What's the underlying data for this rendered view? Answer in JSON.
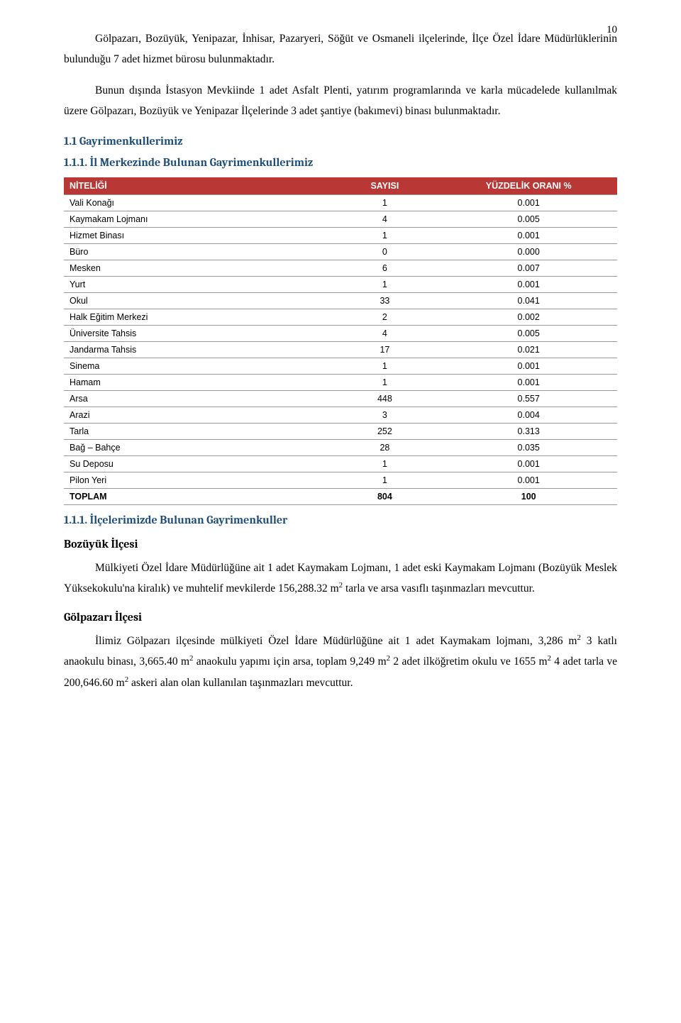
{
  "page_number": "10",
  "paragraphs": {
    "p1": "Gölpazarı, Bozüyük, Yenipazar, İnhisar, Pazaryeri, Söğüt ve Osmaneli ilçelerinde, İlçe Özel İdare Müdürlüklerinin bulunduğu 7 adet hizmet bürosu bulunmaktadır.",
    "p2": "Bunun dışında İstasyon Mevkiinde 1 adet Asfalt Plenti, yatırım programlarında ve karla mücadelede kullanılmak üzere Gölpazarı, Bozüyük ve Yenipazar İlçelerinde 3 adet şantiye (bakımevi) binası bulunmaktadır."
  },
  "headings": {
    "h11": "1.1 Gayrimenkullerimiz",
    "h111": "1.1.1. İl Merkezinde Bulunan Gayrimenkullerimiz",
    "h112": "1.1.1. İlçelerimizde Bulunan Gayrimenkuller",
    "bozuyuk": "Bozüyük İlçesi",
    "golpazari": "Gölpazarı İlçesi"
  },
  "table": {
    "type": "table",
    "header_bg": "#b93835",
    "header_color": "#ffffff",
    "border_color": "#999999",
    "font_family": "Verdana",
    "font_size": 12.5,
    "columns": [
      {
        "label": "NİTELİĞİ",
        "align": "left",
        "width": "48%"
      },
      {
        "label": "SAYISI",
        "align": "center",
        "width": "20%"
      },
      {
        "label": "YÜZDELİK ORANI %",
        "align": "center",
        "width": "32%"
      }
    ],
    "rows": [
      {
        "name": "Vali Konağı",
        "count": "1",
        "pct": "0.001"
      },
      {
        "name": "Kaymakam Lojmanı",
        "count": "4",
        "pct": "0.005"
      },
      {
        "name": "Hizmet Binası",
        "count": "1",
        "pct": "0.001"
      },
      {
        "name": "Büro",
        "count": "0",
        "pct": "0.000"
      },
      {
        "name": "Mesken",
        "count": "6",
        "pct": "0.007"
      },
      {
        "name": "Yurt",
        "count": "1",
        "pct": "0.001"
      },
      {
        "name": "Okul",
        "count": "33",
        "pct": "0.041"
      },
      {
        "name": "Halk Eğitim Merkezi",
        "count": "2",
        "pct": "0.002"
      },
      {
        "name": "Üniversite Tahsis",
        "count": "4",
        "pct": "0.005"
      },
      {
        "name": "Jandarma Tahsis",
        "count": "17",
        "pct": "0.021"
      },
      {
        "name": "Sinema",
        "count": "1",
        "pct": "0.001"
      },
      {
        "name": "Hamam",
        "count": "1",
        "pct": "0.001"
      },
      {
        "name": "Arsa",
        "count": "448",
        "pct": "0.557"
      },
      {
        "name": "Arazi",
        "count": "3",
        "pct": "0.004"
      },
      {
        "name": "Tarla",
        "count": "252",
        "pct": "0.313"
      },
      {
        "name": "Bağ – Bahçe",
        "count": "28",
        "pct": "0.035"
      },
      {
        "name": "Su Deposu",
        "count": "1",
        "pct": "0.001"
      },
      {
        "name": "Pilon Yeri",
        "count": "1",
        "pct": "0.001"
      }
    ],
    "total": {
      "label": "TOPLAM",
      "count": "804",
      "pct": "100"
    }
  },
  "after_text": {
    "bozuyuk_para_a": "Mülkiyeti Özel İdare Müdürlüğüne ait 1 adet Kaymakam Lojmanı, 1 adet eski Kaymakam Lojmanı (Bozüyük Meslek Yüksekokulu'na kiralık) ve muhtelif mevkilerde 156,288.32 m",
    "bozuyuk_para_b": " tarla ve arsa vasıflı taşınmazları mevcuttur.",
    "golpazari_para_a": "İlimiz Gölpazarı ilçesinde mülkiyeti Özel İdare Müdürlüğüne ait 1 adet Kaymakam lojmanı, 3,286 m",
    "golpazari_para_b": " 3 katlı anaokulu binası, 3,665.40 m",
    "golpazari_para_c": " anaokulu yapımı için arsa, toplam 9,249 m",
    "golpazari_para_d": " 2 adet ilköğretim okulu ve 1655 m",
    "golpazari_para_e": " 4 adet tarla ve 200,646.60 m",
    "golpazari_para_f": " askeri alan olan kullanılan taşınmazları mevcuttur.",
    "sup2": "2"
  }
}
